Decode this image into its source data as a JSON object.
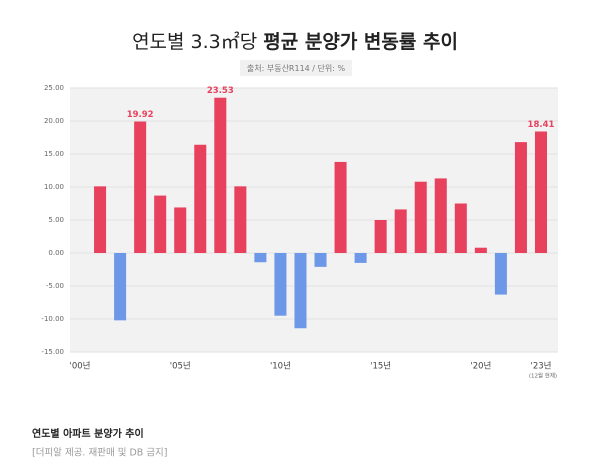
{
  "chart_data": {
    "type": "bar",
    "title": [
      "연도별 3.3㎡당 ",
      "평균 분양가 변동률 추이"
    ],
    "subtitle": "출처: 부동산R114 / 단위: %",
    "categories": [
      "'00년",
      null,
      null,
      null,
      null,
      "'05년",
      null,
      null,
      null,
      null,
      "'10년",
      null,
      null,
      null,
      null,
      "'15년",
      null,
      null,
      null,
      null,
      "'20년",
      null,
      null,
      "'23년"
    ],
    "x_note": "(12월 현재)",
    "values": [
      null,
      10.1,
      -10.2,
      19.92,
      8.7,
      6.9,
      16.4,
      23.53,
      10.1,
      -1.4,
      -9.5,
      -11.4,
      -2.1,
      13.8,
      -1.5,
      5.0,
      6.6,
      10.8,
      11.3,
      7.5,
      0.8,
      -6.3,
      16.8,
      18.41
    ],
    "value_labels": [
      null,
      null,
      null,
      "19.92",
      null,
      null,
      null,
      "23.53",
      null,
      null,
      null,
      null,
      null,
      null,
      null,
      null,
      null,
      null,
      null,
      null,
      null,
      null,
      null,
      "18.41"
    ],
    "color": "#e8415e",
    "negative_color": "#6d98e8",
    "ylim": [
      -15,
      25
    ],
    "yticks": [
      {
        "value": -15,
        "label": "-15.00"
      },
      {
        "value": -10,
        "label": "-10.00"
      },
      {
        "value": -5,
        "label": "-5.00"
      },
      {
        "value": 0,
        "label": "0.00"
      },
      {
        "value": 5,
        "label": "5.00"
      },
      {
        "value": 10,
        "label": "10.00"
      },
      {
        "value": 15,
        "label": "15.00"
      },
      {
        "value": 20,
        "label": "20.00"
      },
      {
        "value": 25,
        "label": "25.00"
      }
    ],
    "grid": true
  },
  "footer": {
    "caption": "연도별 아파트 분양가 추이",
    "credit": "[더피알 제공. 재판매 및 DB 금지]"
  }
}
